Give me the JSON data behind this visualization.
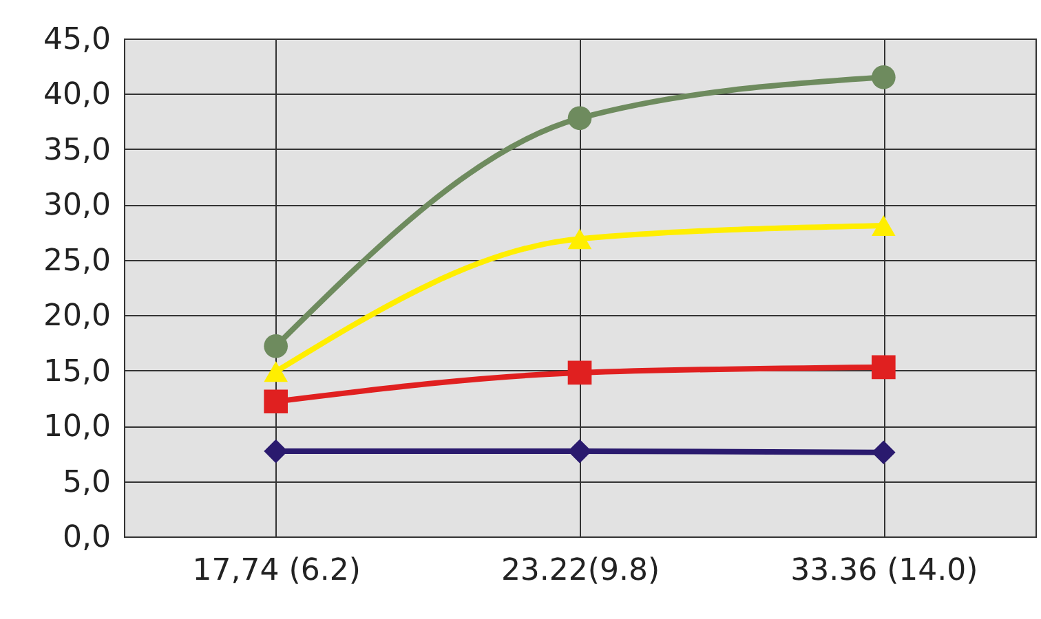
{
  "chart_data": {
    "type": "line",
    "categories": [
      "17,74 (6.2)",
      "23.22(9.8)",
      "33.36 (14.0)"
    ],
    "series": [
      {
        "color": "#6e8b5e",
        "marker": "circle",
        "values": [
          17.2,
          37.8,
          41.5
        ]
      },
      {
        "color": "#ffee00",
        "marker": "triangle",
        "values": [
          14.9,
          26.9,
          28.1
        ]
      },
      {
        "color": "#e02020",
        "marker": "square",
        "values": [
          12.2,
          14.8,
          15.3
        ]
      },
      {
        "color": "#2a1a6e",
        "marker": "diamond",
        "values": [
          7.7,
          7.7,
          7.6
        ]
      }
    ],
    "ylim": [
      0,
      45
    ],
    "yticks": [
      {
        "value": 0,
        "label": "0,0"
      },
      {
        "value": 5,
        "label": "5,0"
      },
      {
        "value": 10,
        "label": "10,0"
      },
      {
        "value": 15,
        "label": "15,0"
      },
      {
        "value": 20,
        "label": "20,0"
      },
      {
        "value": 25,
        "label": "25,0"
      },
      {
        "value": 30,
        "label": "30,0"
      },
      {
        "value": 35,
        "label": "35,0"
      },
      {
        "value": 40,
        "label": "40,0"
      },
      {
        "value": 45,
        "label": "45,0"
      }
    ],
    "grid": true,
    "line_style": "solid"
  }
}
